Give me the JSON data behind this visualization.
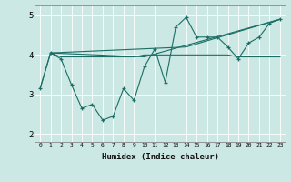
{
  "xlabel": "Humidex (Indice chaleur)",
  "bg_color": "#cce8e4",
  "line_color": "#1a6e65",
  "grid_color": "#ffffff",
  "xlim": [
    -0.5,
    23.5
  ],
  "ylim": [
    1.8,
    5.25
  ],
  "yticks": [
    2,
    3,
    4,
    5
  ],
  "xticks": [
    0,
    1,
    2,
    3,
    4,
    5,
    6,
    7,
    8,
    9,
    10,
    11,
    12,
    13,
    14,
    15,
    16,
    17,
    18,
    19,
    20,
    21,
    22,
    23
  ],
  "series1_x": [
    0,
    1,
    2,
    3,
    4,
    5,
    6,
    7,
    8,
    9,
    10,
    11,
    12,
    13,
    14,
    15,
    16,
    17,
    18,
    19,
    20,
    21,
    22,
    23
  ],
  "series1_y": [
    3.15,
    4.05,
    3.9,
    3.25,
    2.65,
    2.75,
    2.35,
    2.45,
    3.15,
    2.85,
    3.7,
    4.15,
    3.3,
    4.7,
    4.95,
    4.45,
    4.45,
    4.45,
    4.2,
    3.9,
    4.3,
    4.45,
    4.8,
    4.9
  ],
  "series2_x": [
    0,
    1,
    2,
    3,
    4,
    5,
    6,
    7,
    8,
    9,
    10,
    11,
    12,
    13,
    14,
    15,
    16,
    17,
    18,
    19,
    20,
    21,
    22,
    23
  ],
  "series2_y": [
    3.15,
    4.05,
    3.95,
    3.95,
    3.95,
    3.95,
    3.95,
    3.95,
    3.95,
    3.95,
    4.0,
    4.0,
    4.0,
    4.0,
    4.0,
    4.0,
    4.0,
    4.0,
    4.0,
    3.95,
    3.95,
    3.95,
    3.95,
    3.95
  ],
  "series3_x": [
    1,
    10,
    23
  ],
  "series3_y": [
    4.05,
    3.95,
    4.9
  ],
  "series4_x": [
    1,
    14,
    23
  ],
  "series4_y": [
    4.05,
    4.2,
    4.9
  ]
}
